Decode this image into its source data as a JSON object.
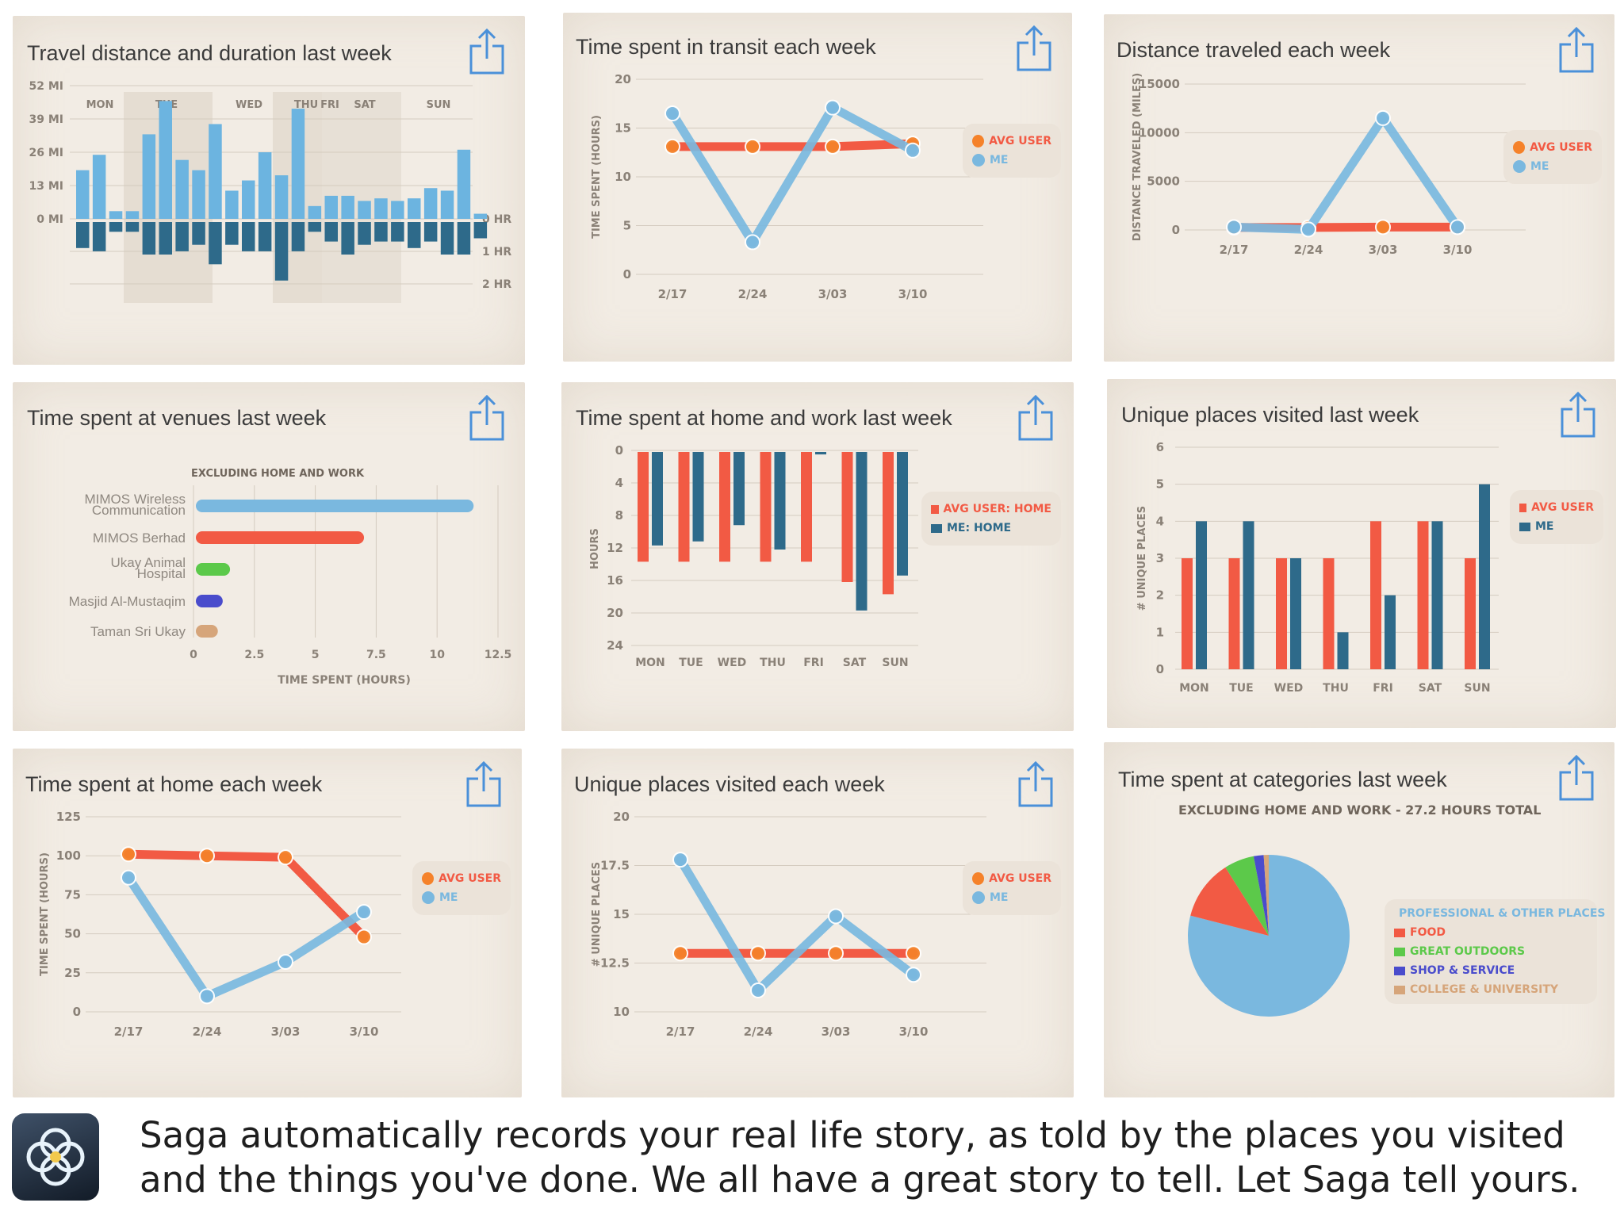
{
  "colors": {
    "avg": "#f25a44",
    "me": "#7ab8df",
    "dark": "#2e6a8a",
    "card": "#f2ece4"
  },
  "icons": {
    "share": "share-icon",
    "app": "saga-logo-icon"
  },
  "charts": [
    {
      "id": "c1",
      "title": "Travel distance and duration last week",
      "chart_data": {
        "type": "bar",
        "days": [
          "MON",
          "TUE",
          "WED",
          "THU",
          "FRI",
          "SAT",
          "SUN"
        ],
        "distance_ticks": [
          "52 MI",
          "39 MI",
          "26 MI",
          "13 MI",
          "0 MI"
        ],
        "duration_ticks": [
          "0 HR",
          "1 HR",
          "2 HR"
        ],
        "ylim_distance": [
          0,
          52
        ],
        "ylim_duration": [
          0,
          2
        ],
        "distance_values": [
          19,
          25,
          3,
          3,
          33,
          46,
          23,
          19,
          37,
          11,
          15,
          26,
          17,
          43,
          5,
          9,
          9,
          7,
          8,
          7,
          8,
          12,
          11,
          27,
          2
        ],
        "duration_values": [
          0.8,
          0.9,
          0.3,
          0.3,
          1.0,
          1.0,
          0.9,
          0.7,
          1.3,
          0.7,
          0.9,
          0.9,
          1.8,
          0.9,
          0.3,
          0.6,
          1.0,
          0.7,
          0.6,
          0.6,
          0.8,
          0.6,
          1.0,
          1.0,
          0.5
        ]
      }
    },
    {
      "id": "c2",
      "title": "Time spent in transit each week",
      "chart_data": {
        "type": "line",
        "x": [
          "2/17",
          "2/24",
          "3/03",
          "3/10"
        ],
        "ylabel": "TIME SPENT (HOURS)",
        "yticks": [
          "20",
          "15",
          "10",
          "5",
          "0"
        ],
        "ylim": [
          0,
          20
        ],
        "series": [
          {
            "name": "AVG USER",
            "values": [
              13.1,
              13.1,
              13.1,
              13.4
            ]
          },
          {
            "name": "ME",
            "values": [
              16.5,
              3.3,
              17.1,
              12.7
            ]
          }
        ]
      }
    },
    {
      "id": "c3",
      "title": "Distance traveled each week",
      "chart_data": {
        "type": "line",
        "x": [
          "2/17",
          "2/24",
          "3/03",
          "3/10"
        ],
        "ylabel": "DISTANCE TRAVELED (MILES)",
        "yticks": [
          "15000",
          "10000",
          "5000",
          "0"
        ],
        "ylim": [
          0,
          15000
        ],
        "series": [
          {
            "name": "AVG USER",
            "values": [
              250,
              250,
              300,
              300
            ]
          },
          {
            "name": "ME",
            "values": [
              300,
              50,
              11500,
              300
            ]
          }
        ]
      }
    },
    {
      "id": "c4",
      "title": "Time spent at venues last week",
      "subtitle": "EXCLUDING HOME AND WORK",
      "chart_data": {
        "type": "bar",
        "orientation": "horizontal",
        "categories": [
          "MIMOS Wireless Communication",
          "MIMOS Berhad",
          "Ukay Animal Hospital",
          "Masjid Al-Mustaqim",
          "Taman Sri Ukay"
        ],
        "category_lines": [
          [
            "MIMOS Wireless",
            "Communication"
          ],
          [
            "MIMOS Berhad"
          ],
          [
            "Ukay Animal",
            "Hospital"
          ],
          [
            "Masjid Al-Mustaqim"
          ],
          [
            "Taman Sri Ukay"
          ]
        ],
        "values": [
          11.5,
          7.0,
          1.5,
          1.2,
          1.0
        ],
        "bar_colors": [
          "#7ab8df",
          "#f25a44",
          "#5cc94a",
          "#4a4ccc",
          "#d6a57a"
        ],
        "xticks": [
          "0",
          "2.5",
          "5",
          "7.5",
          "10",
          "12.5"
        ],
        "xlim": [
          0,
          12.5
        ],
        "xlabel": "TIME SPENT (HOURS)"
      }
    },
    {
      "id": "c5",
      "title": "Time spent at home and work last week",
      "chart_data": {
        "type": "bar",
        "categories": [
          "MON",
          "TUE",
          "WED",
          "THU",
          "FRI",
          "SAT",
          "SUN"
        ],
        "ylabel": "HOURS",
        "yticks": [
          "0",
          "4",
          "8",
          "12",
          "16",
          "20",
          "24"
        ],
        "ylim": [
          0,
          24
        ],
        "series": [
          {
            "name": "AVG USER: HOME",
            "values": [
              13.5,
              13.5,
              13.5,
              13.5,
              13.5,
              16,
              17.5
            ]
          },
          {
            "name": "ME: HOME",
            "values": [
              11.5,
              11,
              9,
              12,
              0.3,
              19.5,
              15.2
            ]
          }
        ]
      }
    },
    {
      "id": "c6",
      "title": "Unique places visited last week",
      "chart_data": {
        "type": "bar",
        "categories": [
          "MON",
          "TUE",
          "WED",
          "THU",
          "FRI",
          "SAT",
          "SUN"
        ],
        "ylabel": "# UNIQUE PLACES",
        "yticks": [
          "6",
          "5",
          "4",
          "3",
          "2",
          "1",
          "0"
        ],
        "ylim": [
          0,
          6
        ],
        "series": [
          {
            "name": "AVG USER",
            "values": [
              3,
              3,
              3,
              3,
              4,
              4,
              3
            ]
          },
          {
            "name": "ME",
            "values": [
              4,
              4,
              3,
              1,
              2,
              4,
              5
            ]
          }
        ]
      }
    },
    {
      "id": "c7",
      "title": "Time spent at home each week",
      "chart_data": {
        "type": "line",
        "x": [
          "2/17",
          "2/24",
          "3/03",
          "3/10"
        ],
        "ylabel": "TIME SPENT (HOURS)",
        "yticks": [
          "125",
          "100",
          "75",
          "50",
          "25",
          "0"
        ],
        "ylim": [
          0,
          125
        ],
        "series": [
          {
            "name": "AVG USER",
            "values": [
              101,
              100,
              99,
              48
            ]
          },
          {
            "name": "ME",
            "values": [
              86,
              10,
              32,
              64
            ]
          }
        ]
      }
    },
    {
      "id": "c8",
      "title": "Unique places visited each week",
      "chart_data": {
        "type": "line",
        "x": [
          "2/17",
          "2/24",
          "3/03",
          "3/10"
        ],
        "ylabel": "# UNIQUE PLACES",
        "yticks": [
          "20",
          "17.5",
          "15",
          "12.5",
          "10"
        ],
        "ylim": [
          10,
          20
        ],
        "series": [
          {
            "name": "AVG USER",
            "values": [
              13,
              13,
              13,
              13
            ]
          },
          {
            "name": "ME",
            "values": [
              17.8,
              11.1,
              14.9,
              11.9
            ]
          }
        ]
      }
    },
    {
      "id": "c9",
      "title": "Time spent at categories last week",
      "subtitle": "EXCLUDING HOME AND WORK - 27.2 HOURS TOTAL",
      "chart_data": {
        "type": "pie",
        "labels": [
          "PROFESSIONAL & OTHER PLACES",
          "FOOD",
          "GREAT OUTDOORS",
          "SHOP & SERVICE",
          "COLLEGE & UNIVERSITY"
        ],
        "values": [
          79,
          12,
          6,
          2,
          1
        ],
        "colors": [
          "#7ab8df",
          "#f25a44",
          "#5cc94a",
          "#4a4ccc",
          "#d6a57a"
        ]
      }
    }
  ],
  "footer": {
    "text": "Saga automatically records your real life story, as told by the places you visited and the things you've done. We all have a great story to tell. Let Saga tell yours."
  }
}
